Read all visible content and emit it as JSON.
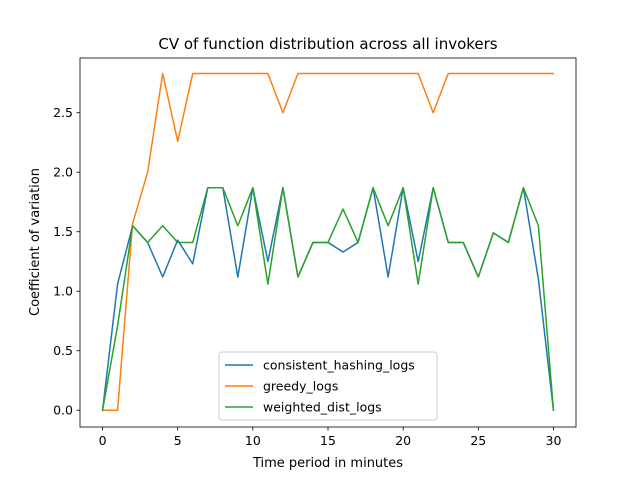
{
  "chart_data": {
    "type": "line",
    "title": "CV of function distribution across all invokers",
    "xlabel": "Time period in minutes",
    "ylabel": "Coefficient of variation",
    "xlim": [
      -1.5,
      31.5
    ],
    "ylim": [
      -0.141,
      2.96
    ],
    "xticks": [
      0,
      5,
      10,
      15,
      20,
      25,
      30
    ],
    "yticks": [
      0.0,
      0.5,
      1.0,
      1.5,
      2.0,
      2.5
    ],
    "xtick_labels": [
      "0",
      "5",
      "10",
      "15",
      "20",
      "25",
      "30"
    ],
    "ytick_labels": [
      "0.0",
      "0.5",
      "1.0",
      "1.5",
      "2.0",
      "2.5"
    ],
    "legend_position": "lower-center",
    "x": [
      0,
      1,
      2,
      3,
      4,
      5,
      6,
      7,
      8,
      9,
      10,
      11,
      12,
      13,
      14,
      15,
      16,
      17,
      18,
      19,
      20,
      21,
      22,
      23,
      24,
      25,
      26,
      27,
      28,
      29,
      30
    ],
    "series": [
      {
        "name": "consistent_hashing_logs",
        "color": "#1f77b4",
        "values": [
          0.0,
          1.06,
          1.55,
          1.41,
          1.12,
          1.43,
          1.23,
          1.87,
          1.87,
          1.12,
          1.87,
          1.25,
          1.87,
          1.12,
          1.41,
          1.41,
          1.33,
          1.41,
          1.87,
          1.12,
          1.87,
          1.25,
          1.87,
          1.41,
          1.41,
          1.12,
          1.49,
          1.41,
          1.87,
          1.1,
          0.0
        ]
      },
      {
        "name": "greedy_logs",
        "color": "#ff7f0e",
        "values": [
          0.0,
          0.0,
          1.57,
          2.0,
          2.83,
          2.26,
          2.83,
          2.83,
          2.83,
          2.83,
          2.83,
          2.83,
          2.5,
          2.83,
          2.83,
          2.83,
          2.83,
          2.83,
          2.83,
          2.83,
          2.83,
          2.83,
          2.5,
          2.83,
          2.83,
          2.83,
          2.83,
          2.83,
          2.83,
          2.83,
          2.83
        ]
      },
      {
        "name": "weighted_dist_logs",
        "color": "#2ca02c",
        "values": [
          0.0,
          0.71,
          1.55,
          1.41,
          1.55,
          1.41,
          1.41,
          1.87,
          1.87,
          1.55,
          1.87,
          1.06,
          1.87,
          1.12,
          1.41,
          1.41,
          1.69,
          1.41,
          1.87,
          1.55,
          1.87,
          1.06,
          1.87,
          1.41,
          1.41,
          1.12,
          1.49,
          1.41,
          1.87,
          1.55,
          0.0
        ]
      }
    ]
  }
}
